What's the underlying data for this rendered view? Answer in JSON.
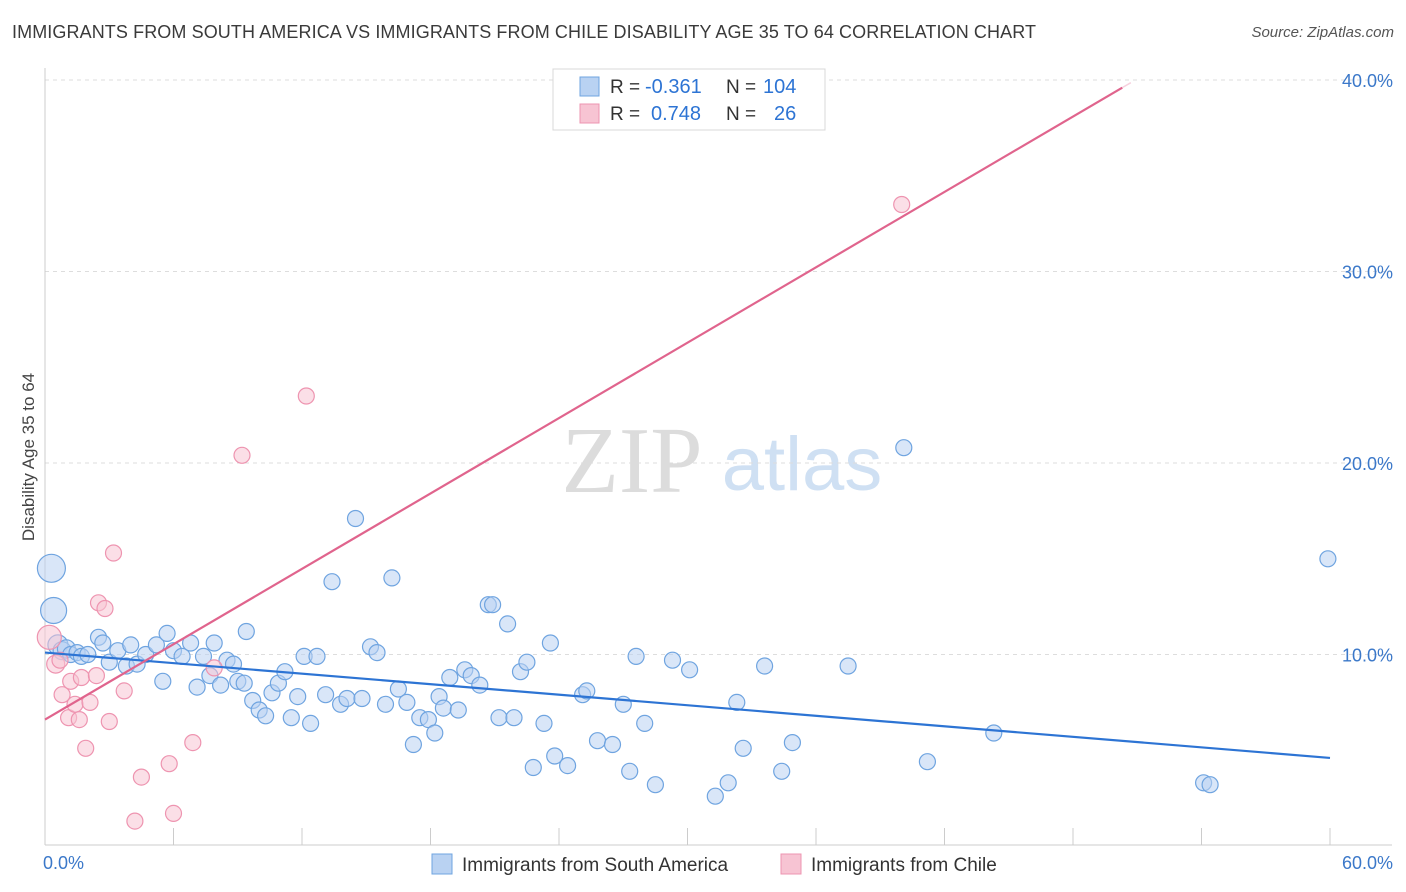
{
  "title": "IMMIGRANTS FROM SOUTH AMERICA VS IMMIGRANTS FROM CHILE DISABILITY AGE 35 TO 64 CORRELATION CHART",
  "source": "Source: ZipAtlas.com",
  "watermark": {
    "zip": "ZIP",
    "atlas": "atlas"
  },
  "chart_data": {
    "type": "scatter",
    "xlabel": "",
    "ylabel": "Disability Age 35 to 64",
    "xlim": [
      0,
      60
    ],
    "ylim": [
      0,
      41
    ],
    "x_tick_labels": [
      {
        "value": 0,
        "label": "0.0%"
      },
      {
        "value": 60,
        "label": "60.0%"
      }
    ],
    "y_tick_labels": [
      {
        "value": 10,
        "label": "10.0%"
      },
      {
        "value": 20,
        "label": "20.0%"
      },
      {
        "value": 30,
        "label": "30.0%"
      },
      {
        "value": 40,
        "label": "40.0%"
      }
    ],
    "legend_stats": [
      {
        "r_label": "R =",
        "r_value": "-0.361",
        "n_label": "N =",
        "n_value": "104"
      },
      {
        "r_label": "R =",
        "r_value": "0.748",
        "n_label": "N =",
        "n_value": "26"
      }
    ],
    "series": [
      {
        "name": "Immigrants from South America",
        "color": "#6fa4e0",
        "fill": "#b9d2f2",
        "line_color": "#2d74d4",
        "trend": {
          "x": [
            0,
            60
          ],
          "y": [
            10.1,
            4.6
          ]
        },
        "points": [
          [
            0.3,
            14.5,
            14
          ],
          [
            0.4,
            12.3,
            13
          ],
          [
            0.6,
            10.5,
            10
          ],
          [
            0.8,
            10.2,
            9
          ],
          [
            1.0,
            10.3,
            9
          ],
          [
            1.2,
            10.0,
            8
          ],
          [
            1.5,
            10.1,
            8
          ],
          [
            1.7,
            9.9,
            8
          ],
          [
            2.0,
            10.0,
            8
          ],
          [
            2.5,
            10.9,
            8
          ],
          [
            2.7,
            10.6,
            8
          ],
          [
            3.0,
            9.6,
            8
          ],
          [
            3.4,
            10.2,
            8
          ],
          [
            3.8,
            9.4,
            8
          ],
          [
            4.0,
            10.5,
            8
          ],
          [
            4.3,
            9.5,
            8
          ],
          [
            4.7,
            10.0,
            8
          ],
          [
            5.2,
            10.5,
            8
          ],
          [
            5.5,
            8.6,
            8
          ],
          [
            5.7,
            11.1,
            8
          ],
          [
            6.0,
            10.2,
            8
          ],
          [
            6.4,
            9.9,
            8
          ],
          [
            6.8,
            10.6,
            8
          ],
          [
            7.1,
            8.3,
            8
          ],
          [
            7.4,
            9.9,
            8
          ],
          [
            7.7,
            8.9,
            8
          ],
          [
            7.9,
            10.6,
            8
          ],
          [
            8.2,
            8.4,
            8
          ],
          [
            8.5,
            9.7,
            8
          ],
          [
            8.8,
            9.5,
            8
          ],
          [
            9.0,
            8.6,
            8
          ],
          [
            9.3,
            8.5,
            8
          ],
          [
            9.4,
            11.2,
            8
          ],
          [
            9.7,
            7.6,
            8
          ],
          [
            10.0,
            7.1,
            8
          ],
          [
            10.3,
            6.8,
            8
          ],
          [
            10.6,
            8.0,
            8
          ],
          [
            10.9,
            8.5,
            8
          ],
          [
            11.2,
            9.1,
            8
          ],
          [
            11.5,
            6.7,
            8
          ],
          [
            11.8,
            7.8,
            8
          ],
          [
            12.1,
            9.9,
            8
          ],
          [
            12.4,
            6.4,
            8
          ],
          [
            12.7,
            9.9,
            8
          ],
          [
            13.1,
            7.9,
            8
          ],
          [
            13.4,
            13.8,
            8
          ],
          [
            13.8,
            7.4,
            8
          ],
          [
            14.1,
            7.7,
            8
          ],
          [
            14.5,
            17.1,
            8
          ],
          [
            14.8,
            7.7,
            8
          ],
          [
            15.2,
            10.4,
            8
          ],
          [
            15.5,
            10.1,
            8
          ],
          [
            15.9,
            7.4,
            8
          ],
          [
            16.2,
            14.0,
            8
          ],
          [
            16.5,
            8.2,
            8
          ],
          [
            16.9,
            7.5,
            8
          ],
          [
            17.2,
            5.3,
            8
          ],
          [
            17.5,
            6.7,
            8
          ],
          [
            17.9,
            6.6,
            8
          ],
          [
            18.2,
            5.9,
            8
          ],
          [
            18.4,
            7.8,
            8
          ],
          [
            18.6,
            7.2,
            8
          ],
          [
            18.9,
            8.8,
            8
          ],
          [
            19.3,
            7.1,
            8
          ],
          [
            19.6,
            9.2,
            8
          ],
          [
            19.9,
            8.9,
            8
          ],
          [
            20.3,
            8.4,
            8
          ],
          [
            20.7,
            12.6,
            8
          ],
          [
            20.9,
            12.6,
            8
          ],
          [
            21.2,
            6.7,
            8
          ],
          [
            21.6,
            11.6,
            8
          ],
          [
            21.9,
            6.7,
            8
          ],
          [
            22.2,
            9.1,
            8
          ],
          [
            22.5,
            9.6,
            8
          ],
          [
            22.8,
            4.1,
            8
          ],
          [
            23.3,
            6.4,
            8
          ],
          [
            23.6,
            10.6,
            8
          ],
          [
            23.8,
            4.7,
            8
          ],
          [
            24.4,
            4.2,
            8
          ],
          [
            25.1,
            7.9,
            8
          ],
          [
            25.3,
            8.1,
            8
          ],
          [
            25.8,
            5.5,
            8
          ],
          [
            26.5,
            5.3,
            8
          ],
          [
            27.0,
            7.4,
            8
          ],
          [
            27.3,
            3.9,
            8
          ],
          [
            27.6,
            9.9,
            8
          ],
          [
            28.0,
            6.4,
            8
          ],
          [
            28.5,
            3.2,
            8
          ],
          [
            29.3,
            9.7,
            8
          ],
          [
            30.1,
            9.2,
            8
          ],
          [
            31.3,
            2.6,
            8
          ],
          [
            31.9,
            3.3,
            8
          ],
          [
            32.3,
            7.5,
            8
          ],
          [
            32.6,
            5.1,
            8
          ],
          [
            33.6,
            9.4,
            8
          ],
          [
            34.4,
            3.9,
            8
          ],
          [
            34.9,
            5.4,
            8
          ],
          [
            37.5,
            9.4,
            8
          ],
          [
            40.1,
            20.8,
            8
          ],
          [
            41.2,
            4.4,
            8
          ],
          [
            44.3,
            5.9,
            8
          ],
          [
            54.1,
            3.3,
            8
          ],
          [
            54.4,
            3.2,
            8
          ],
          [
            59.9,
            15.0,
            8
          ]
        ]
      },
      {
        "name": "Immigrants from Chile",
        "color": "#ee94b0",
        "fill": "#f7c4d3",
        "line_color": "#e0648d",
        "trend": {
          "x": [
            0,
            50.3
          ],
          "y": [
            6.6,
            39.6
          ]
        },
        "points": [
          [
            0.2,
            10.9,
            12
          ],
          [
            0.5,
            9.5,
            9
          ],
          [
            0.7,
            9.7,
            8
          ],
          [
            0.8,
            7.9,
            8
          ],
          [
            1.1,
            6.7,
            8
          ],
          [
            1.2,
            8.6,
            8
          ],
          [
            1.4,
            7.4,
            8
          ],
          [
            1.6,
            6.6,
            8
          ],
          [
            1.7,
            8.8,
            8
          ],
          [
            1.9,
            5.1,
            8
          ],
          [
            2.1,
            7.5,
            8
          ],
          [
            2.4,
            8.9,
            8
          ],
          [
            2.5,
            12.7,
            8
          ],
          [
            2.8,
            12.4,
            8
          ],
          [
            3.0,
            6.5,
            8
          ],
          [
            3.2,
            15.3,
            8
          ],
          [
            3.7,
            8.1,
            8
          ],
          [
            4.5,
            3.6,
            8
          ],
          [
            4.2,
            1.3,
            8
          ],
          [
            5.8,
            4.3,
            8
          ],
          [
            6.0,
            1.7,
            8
          ],
          [
            6.9,
            5.4,
            8
          ],
          [
            7.9,
            9.3,
            8
          ],
          [
            9.2,
            20.4,
            8
          ],
          [
            12.2,
            23.5,
            8
          ],
          [
            40.0,
            33.5,
            8
          ]
        ]
      }
    ]
  }
}
